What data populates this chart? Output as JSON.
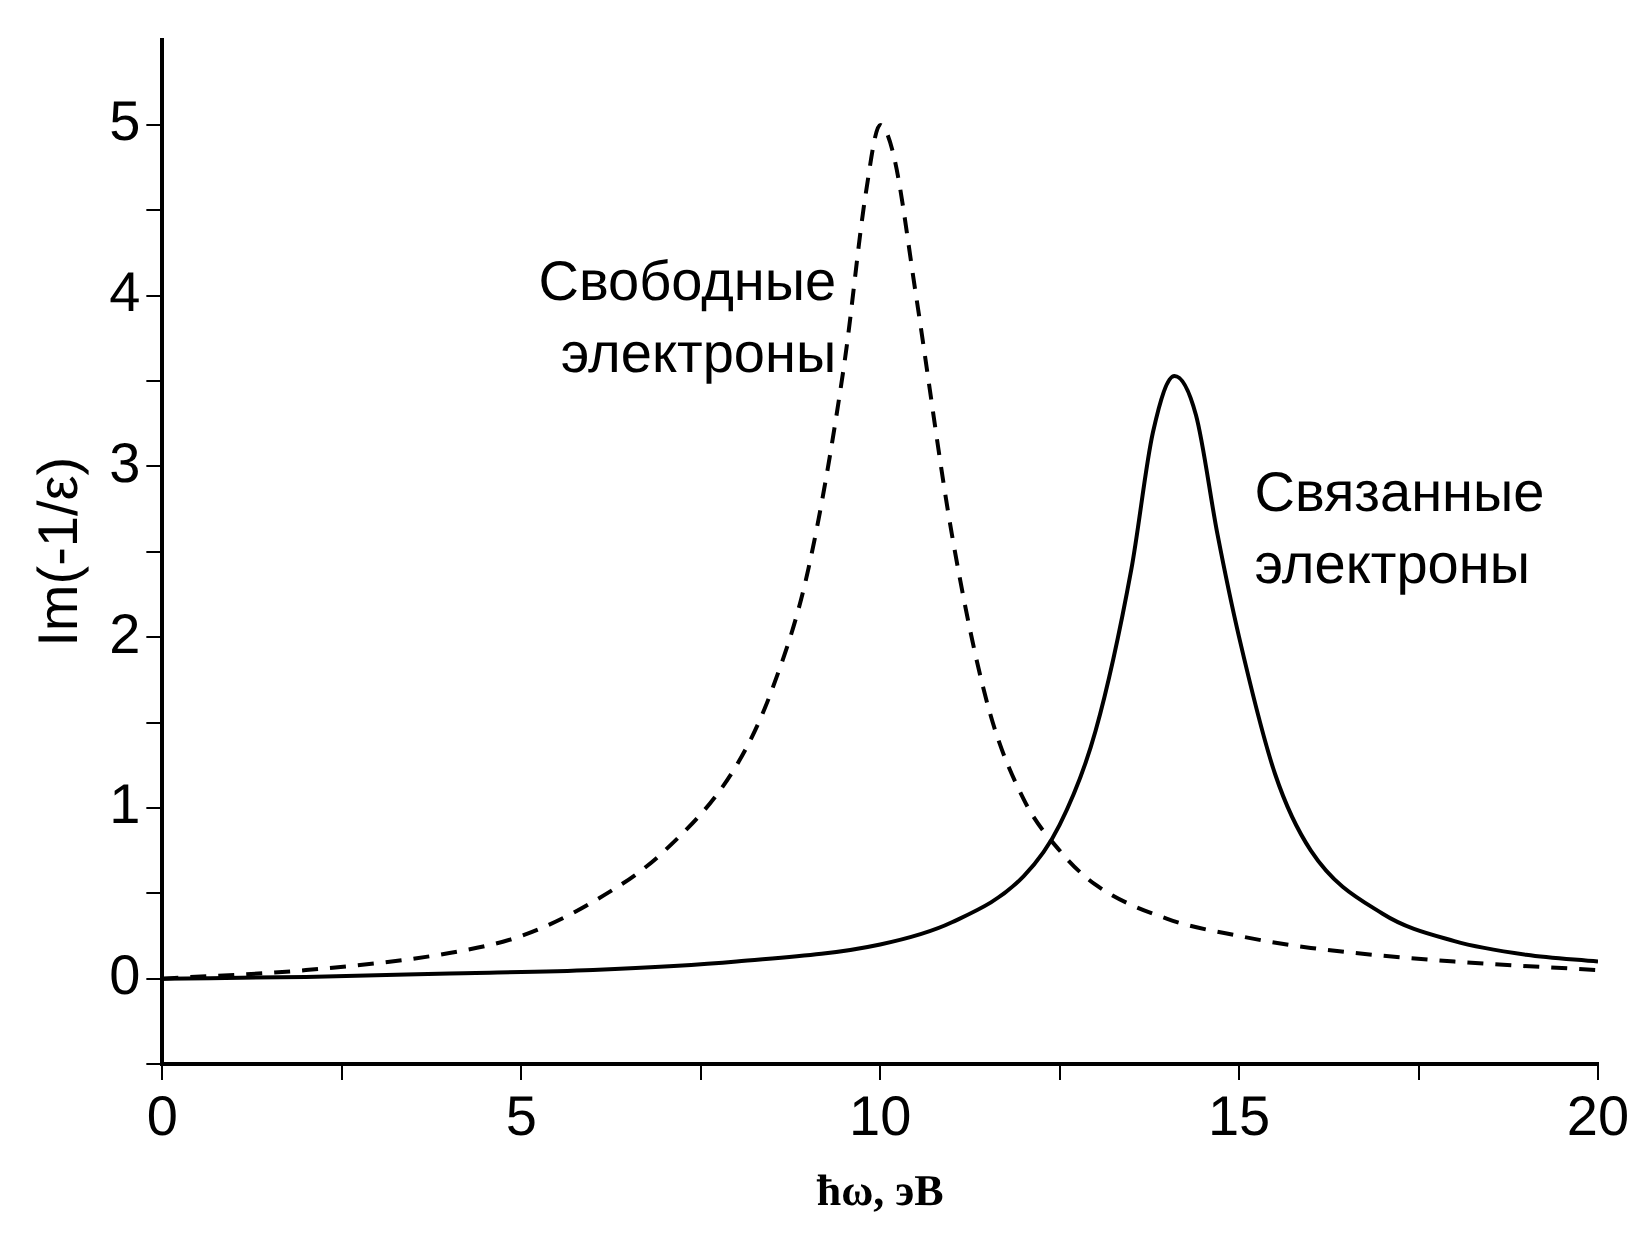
{
  "chart_data": {
    "type": "line",
    "xlabel": "ħω, эВ",
    "ylabel": "Im(-1/ε)",
    "xlim": [
      0,
      20
    ],
    "xticks": [
      0,
      {
        "value": 2.5,
        "label": null
      },
      5,
      {
        "value": 7.5,
        "label": null
      },
      10,
      {
        "value": 12.5,
        "label": null
      },
      15,
      {
        "value": 17.5,
        "label": null
      },
      20
    ],
    "ylim": [
      -0.5,
      5.5
    ],
    "yticks": [
      {
        "value": -0.5,
        "label": null
      },
      0,
      {
        "value": 0.5,
        "label": null
      },
      1,
      {
        "value": 1.5,
        "label": null
      },
      2,
      {
        "value": 2.5,
        "label": null
      },
      3,
      {
        "value": 3.5,
        "label": null
      },
      4,
      {
        "value": 4.5,
        "label": null
      },
      5
    ],
    "grid": false,
    "legend": false,
    "marker": "none",
    "series": [
      {
        "name": "Свободные электроны",
        "color": "#000000",
        "line_style": "dashed",
        "x": [
          0,
          2,
          4,
          5,
          6,
          7,
          8,
          8.5,
          9,
          9.5,
          9.8,
          10,
          10.2,
          10.5,
          11,
          11.5,
          12,
          12.5,
          13,
          14,
          15,
          16,
          18,
          20
        ],
        "values": [
          0,
          0.05,
          0.15,
          0.25,
          0.45,
          0.75,
          1.25,
          1.7,
          2.4,
          3.6,
          4.6,
          5.0,
          4.8,
          4.0,
          2.6,
          1.6,
          1.05,
          0.75,
          0.55,
          0.35,
          0.25,
          0.18,
          0.1,
          0.05
        ]
      },
      {
        "name": "Связанные электроны",
        "color": "#000000",
        "line_style": "solid",
        "x": [
          0,
          2,
          4,
          6,
          8,
          10,
          11,
          12,
          12.5,
          13,
          13.5,
          13.8,
          14.1,
          14.4,
          14.7,
          15,
          15.5,
          16,
          17,
          18,
          19,
          20
        ],
        "values": [
          0,
          0.01,
          0.03,
          0.05,
          0.1,
          0.2,
          0.33,
          0.6,
          0.9,
          1.45,
          2.4,
          3.2,
          3.53,
          3.3,
          2.6,
          2.0,
          1.2,
          0.75,
          0.38,
          0.22,
          0.14,
          0.1
        ]
      }
    ]
  }
}
